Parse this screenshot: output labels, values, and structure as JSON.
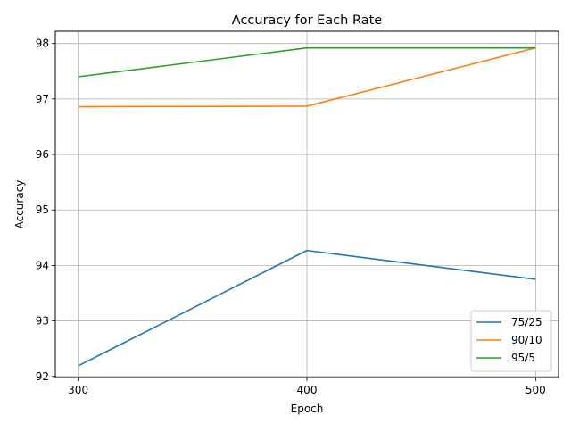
{
  "chart_data": {
    "type": "line",
    "title": "Accuracy for Each Rate",
    "xlabel": "Epoch",
    "ylabel": "Accuracy",
    "x": [
      300,
      400,
      500
    ],
    "x_ticks": [
      "300",
      "400",
      "500"
    ],
    "y_ticks": [
      "92",
      "93",
      "94",
      "95",
      "96",
      "97",
      "98"
    ],
    "ylim": [
      91.98,
      98.22
    ],
    "xlim": [
      290,
      510
    ],
    "grid": true,
    "legend_position": "lower-right",
    "series": [
      {
        "name": "75/25",
        "values": [
          92.19,
          94.27,
          93.75
        ],
        "color": "#1f77b4"
      },
      {
        "name": "90/10",
        "values": [
          96.86,
          96.87,
          97.92
        ],
        "color": "#ff7f0e"
      },
      {
        "name": "95/5",
        "values": [
          97.4,
          97.92,
          97.92
        ],
        "color": "#2ca02c"
      }
    ]
  }
}
